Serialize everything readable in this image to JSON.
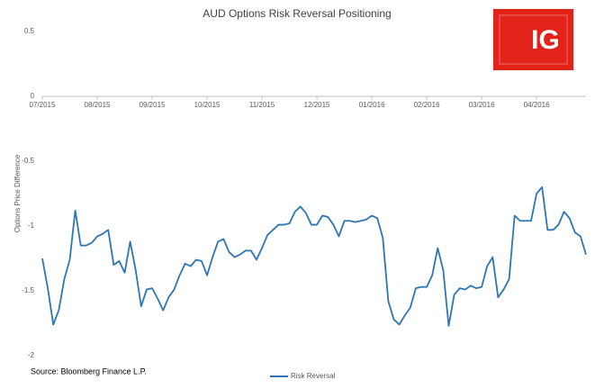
{
  "chart_data": {
    "type": "line",
    "title": "AUD Options Risk Reversal Positioning",
    "y_label": "Options Price Difference",
    "source": "Source: Bloomberg Finance L.P.",
    "logo": "IG",
    "legend": "bottom",
    "xlim": [
      0,
      99
    ],
    "xticks": [
      {
        "value": 0,
        "label": "07/2015"
      },
      {
        "value": 10,
        "label": "08/2015"
      },
      {
        "value": 20,
        "label": "09/2015"
      },
      {
        "value": 30,
        "label": "10/2015"
      },
      {
        "value": 40,
        "label": "11/2015"
      },
      {
        "value": 50,
        "label": "12/2015"
      },
      {
        "value": 60,
        "label": "01/2016"
      },
      {
        "value": 70,
        "label": "02/2016"
      },
      {
        "value": 80,
        "label": "03/2016"
      },
      {
        "value": 90,
        "label": "04/2016"
      }
    ],
    "ylim": [
      -2,
      0.5
    ],
    "yticks": [
      0.5,
      0,
      -0.5,
      -1,
      -1.5,
      -2
    ],
    "series": [
      {
        "name": "Risk Reversal",
        "color": "#2e75b6",
        "values": [
          -1.25,
          -1.48,
          -1.76,
          -1.65,
          -1.41,
          -1.26,
          -0.88,
          -1.15,
          -1.15,
          -1.13,
          -1.08,
          -1.06,
          -1.03,
          -1.3,
          -1.27,
          -1.36,
          -1.12,
          -1.34,
          -1.62,
          -1.49,
          -1.48,
          -1.56,
          -1.65,
          -1.55,
          -1.49,
          -1.38,
          -1.29,
          -1.31,
          -1.26,
          -1.27,
          -1.38,
          -1.24,
          -1.12,
          -1.1,
          -1.2,
          -1.24,
          -1.22,
          -1.19,
          -1.19,
          -1.26,
          -1.17,
          -1.07,
          -1.03,
          -0.99,
          -0.99,
          -0.98,
          -0.89,
          -0.85,
          -0.9,
          -0.99,
          -0.99,
          -0.92,
          -0.93,
          -0.99,
          -1.08,
          -0.96,
          -0.96,
          -0.97,
          -0.96,
          -0.95,
          -0.92,
          -0.94,
          -1.09,
          -1.58,
          -1.72,
          -1.76,
          -1.69,
          -1.63,
          -1.48,
          -1.47,
          -1.47,
          -1.38,
          -1.17,
          -1.34,
          -1.77,
          -1.53,
          -1.48,
          -1.49,
          -1.46,
          -1.48,
          -1.47,
          -1.31,
          -1.24,
          -1.55,
          -1.49,
          -1.41,
          -0.92,
          -0.96,
          -0.96,
          -0.96,
          -0.75,
          -0.7,
          -1.03,
          -1.03,
          -0.99,
          -0.89,
          -0.94,
          -1.05,
          -1.08,
          -1.22
        ]
      }
    ]
  }
}
